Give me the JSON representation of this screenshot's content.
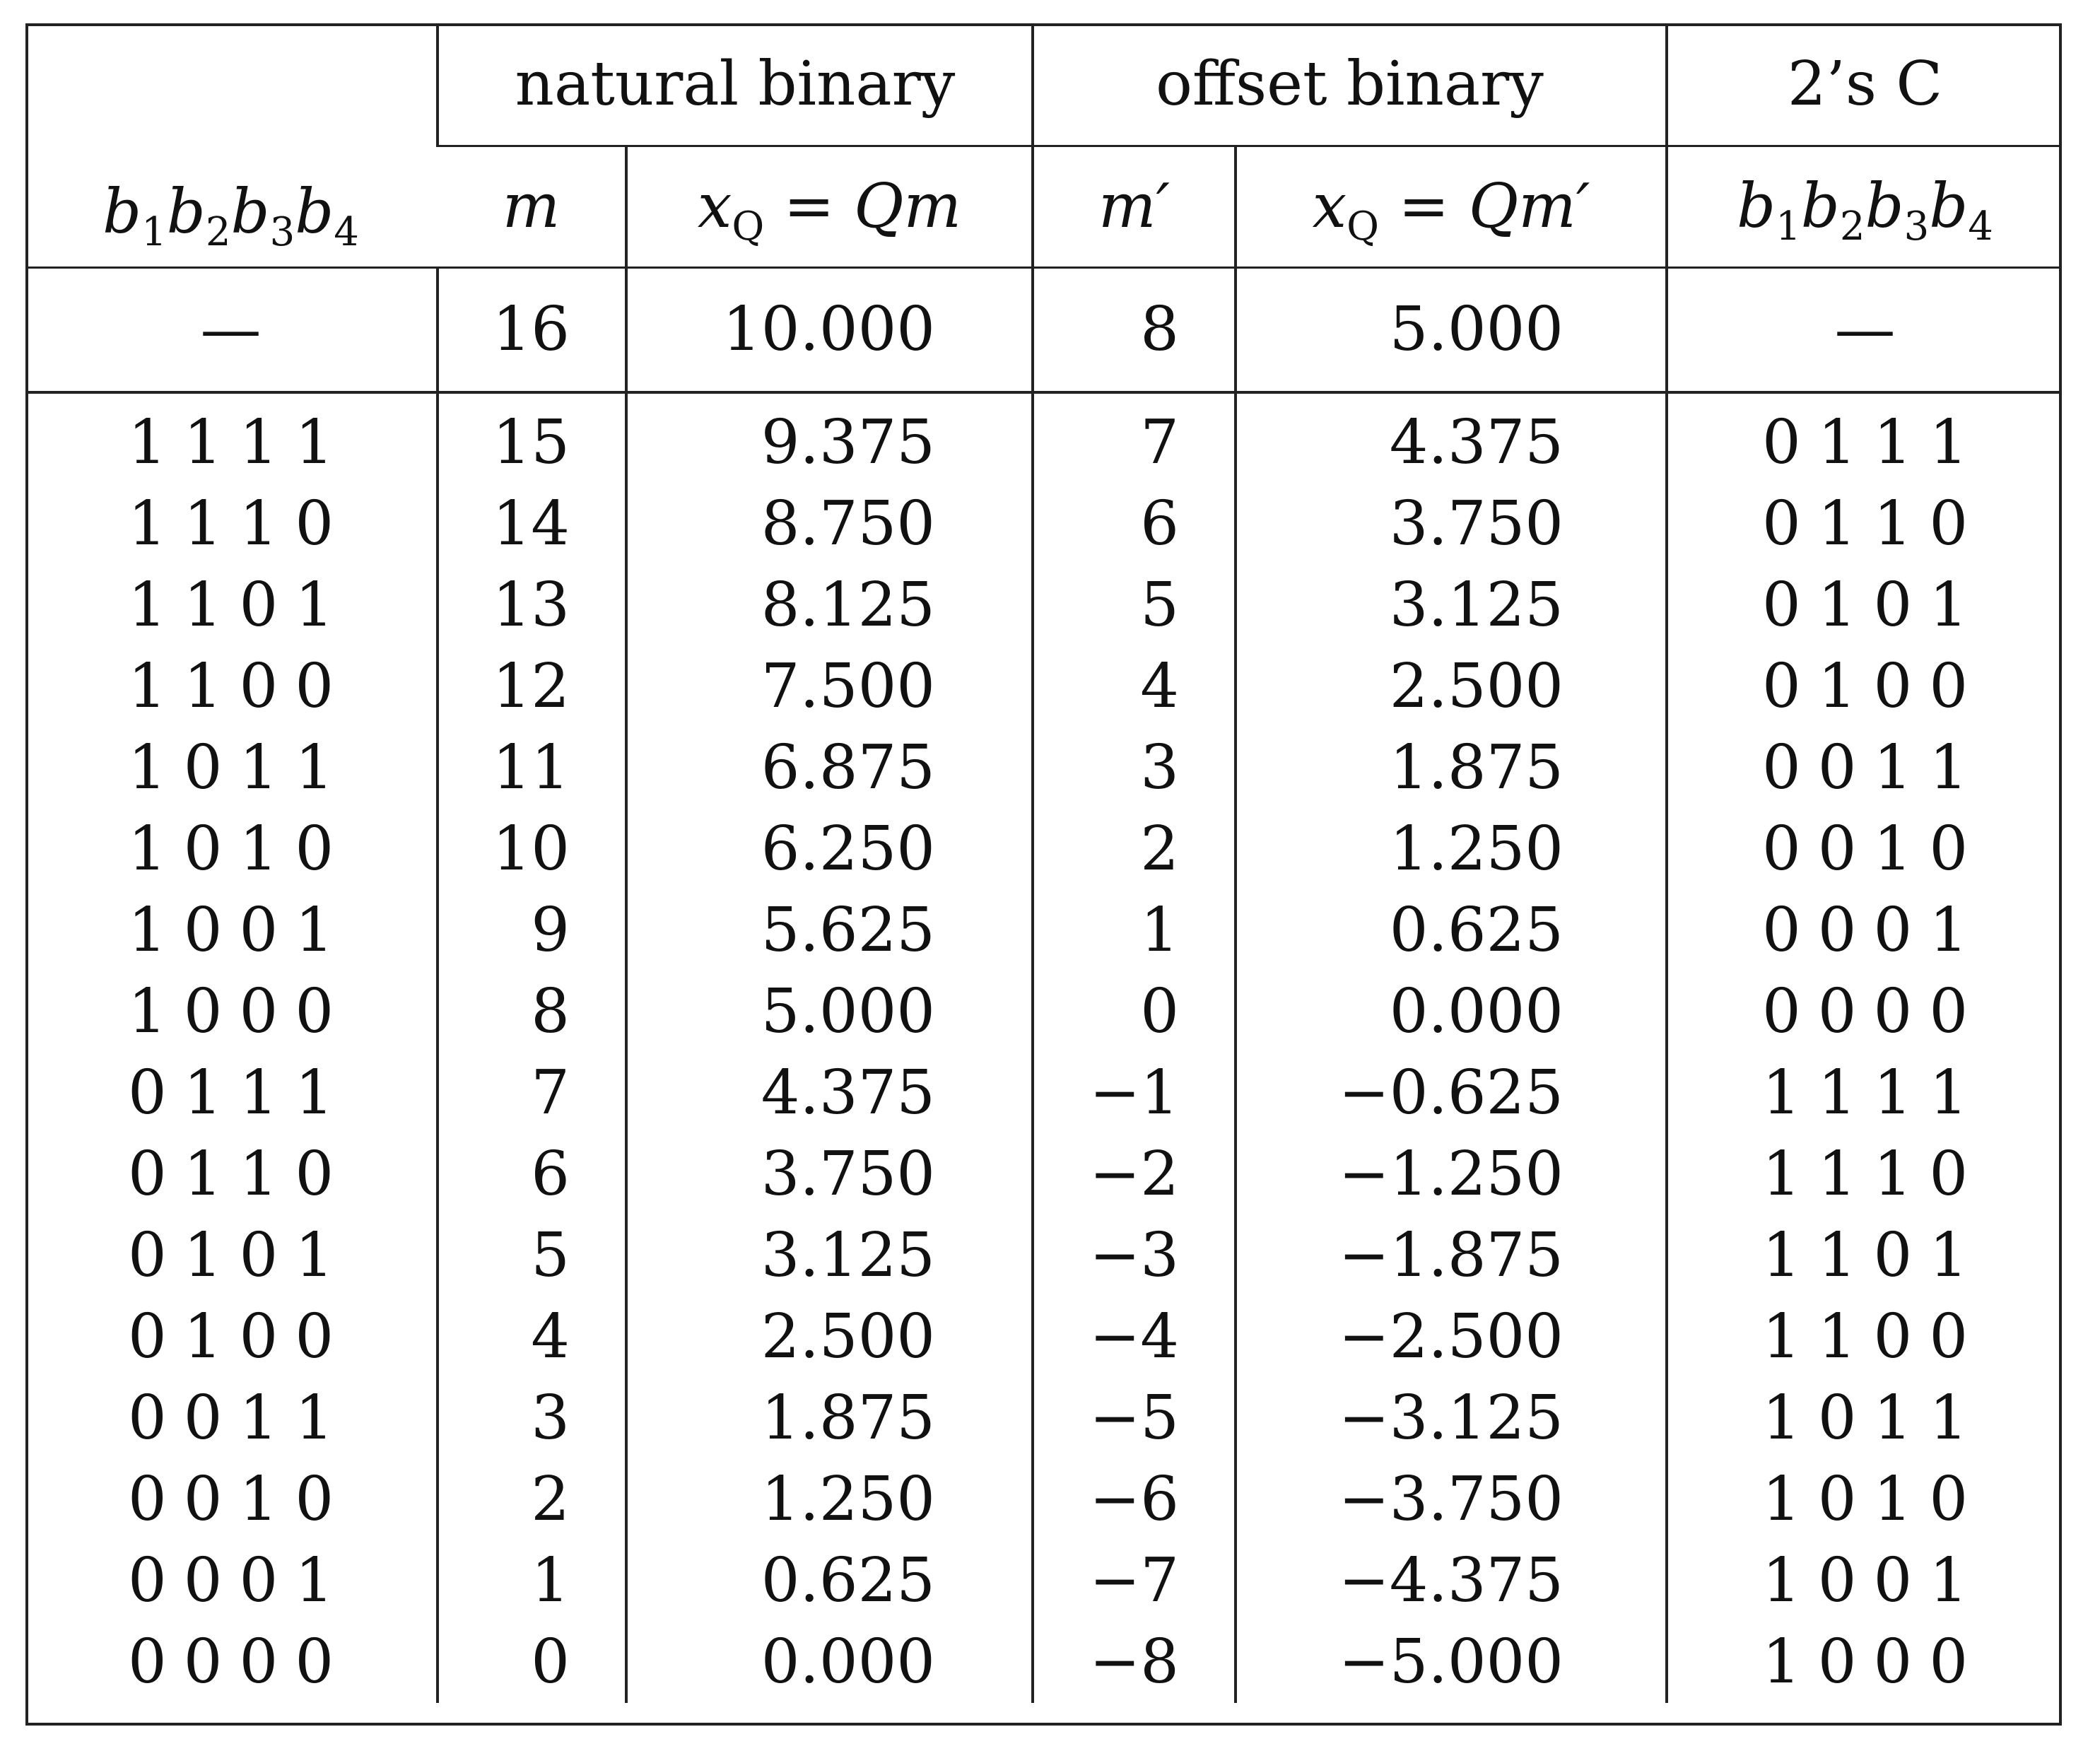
{
  "table": {
    "group_headers": {
      "natural": "natural binary",
      "offset": "offset binary",
      "twos": "2’s C"
    },
    "column_headers": {
      "bits_main": "b",
      "bits_sub": [
        "1",
        "2",
        "3",
        "4"
      ],
      "m": "m",
      "xq_label": "x",
      "xq_sub": "Q",
      "xq_natural_rhs": "= Qm",
      "m_prime": "m′",
      "xq_offset_rhs": "= Qm′",
      "bits2_main": "b",
      "bits2_sub": [
        "1",
        "2",
        "3",
        "4"
      ]
    },
    "overflow_row": {
      "bits": "—",
      "m": "16",
      "xq": "10.000",
      "m_prime": "8",
      "xq_prime": "5.000",
      "twos": "—"
    },
    "rows": [
      {
        "bits": "1111",
        "m": "15",
        "xq": "9.375",
        "m_prime": "7",
        "xq_prime": "4.375",
        "twos": "0111"
      },
      {
        "bits": "1110",
        "m": "14",
        "xq": "8.750",
        "m_prime": "6",
        "xq_prime": "3.750",
        "twos": "0110"
      },
      {
        "bits": "1101",
        "m": "13",
        "xq": "8.125",
        "m_prime": "5",
        "xq_prime": "3.125",
        "twos": "0101"
      },
      {
        "bits": "1100",
        "m": "12",
        "xq": "7.500",
        "m_prime": "4",
        "xq_prime": "2.500",
        "twos": "0100"
      },
      {
        "bits": "1011",
        "m": "11",
        "xq": "6.875",
        "m_prime": "3",
        "xq_prime": "1.875",
        "twos": "0011"
      },
      {
        "bits": "1010",
        "m": "10",
        "xq": "6.250",
        "m_prime": "2",
        "xq_prime": "1.250",
        "twos": "0010"
      },
      {
        "bits": "1001",
        "m": "9",
        "xq": "5.625",
        "m_prime": "1",
        "xq_prime": "0.625",
        "twos": "0001"
      },
      {
        "bits": "1000",
        "m": "8",
        "xq": "5.000",
        "m_prime": "0",
        "xq_prime": "0.000",
        "twos": "0000"
      },
      {
        "bits": "0111",
        "m": "7",
        "xq": "4.375",
        "m_prime": "−1",
        "xq_prime": "−0.625",
        "twos": "1111"
      },
      {
        "bits": "0110",
        "m": "6",
        "xq": "3.750",
        "m_prime": "−2",
        "xq_prime": "−1.250",
        "twos": "1110"
      },
      {
        "bits": "0101",
        "m": "5",
        "xq": "3.125",
        "m_prime": "−3",
        "xq_prime": "−1.875",
        "twos": "1101"
      },
      {
        "bits": "0100",
        "m": "4",
        "xq": "2.500",
        "m_prime": "−4",
        "xq_prime": "−2.500",
        "twos": "1100"
      },
      {
        "bits": "0011",
        "m": "3",
        "xq": "1.875",
        "m_prime": "−5",
        "xq_prime": "−3.125",
        "twos": "1011"
      },
      {
        "bits": "0010",
        "m": "2",
        "xq": "1.250",
        "m_prime": "−6",
        "xq_prime": "−3.750",
        "twos": "1010"
      },
      {
        "bits": "0001",
        "m": "1",
        "xq": "0.625",
        "m_prime": "−7",
        "xq_prime": "−4.375",
        "twos": "1001"
      },
      {
        "bits": "0000",
        "m": "0",
        "xq": "0.000",
        "m_prime": "−8",
        "xq_prime": "−5.000",
        "twos": "1000"
      }
    ]
  }
}
